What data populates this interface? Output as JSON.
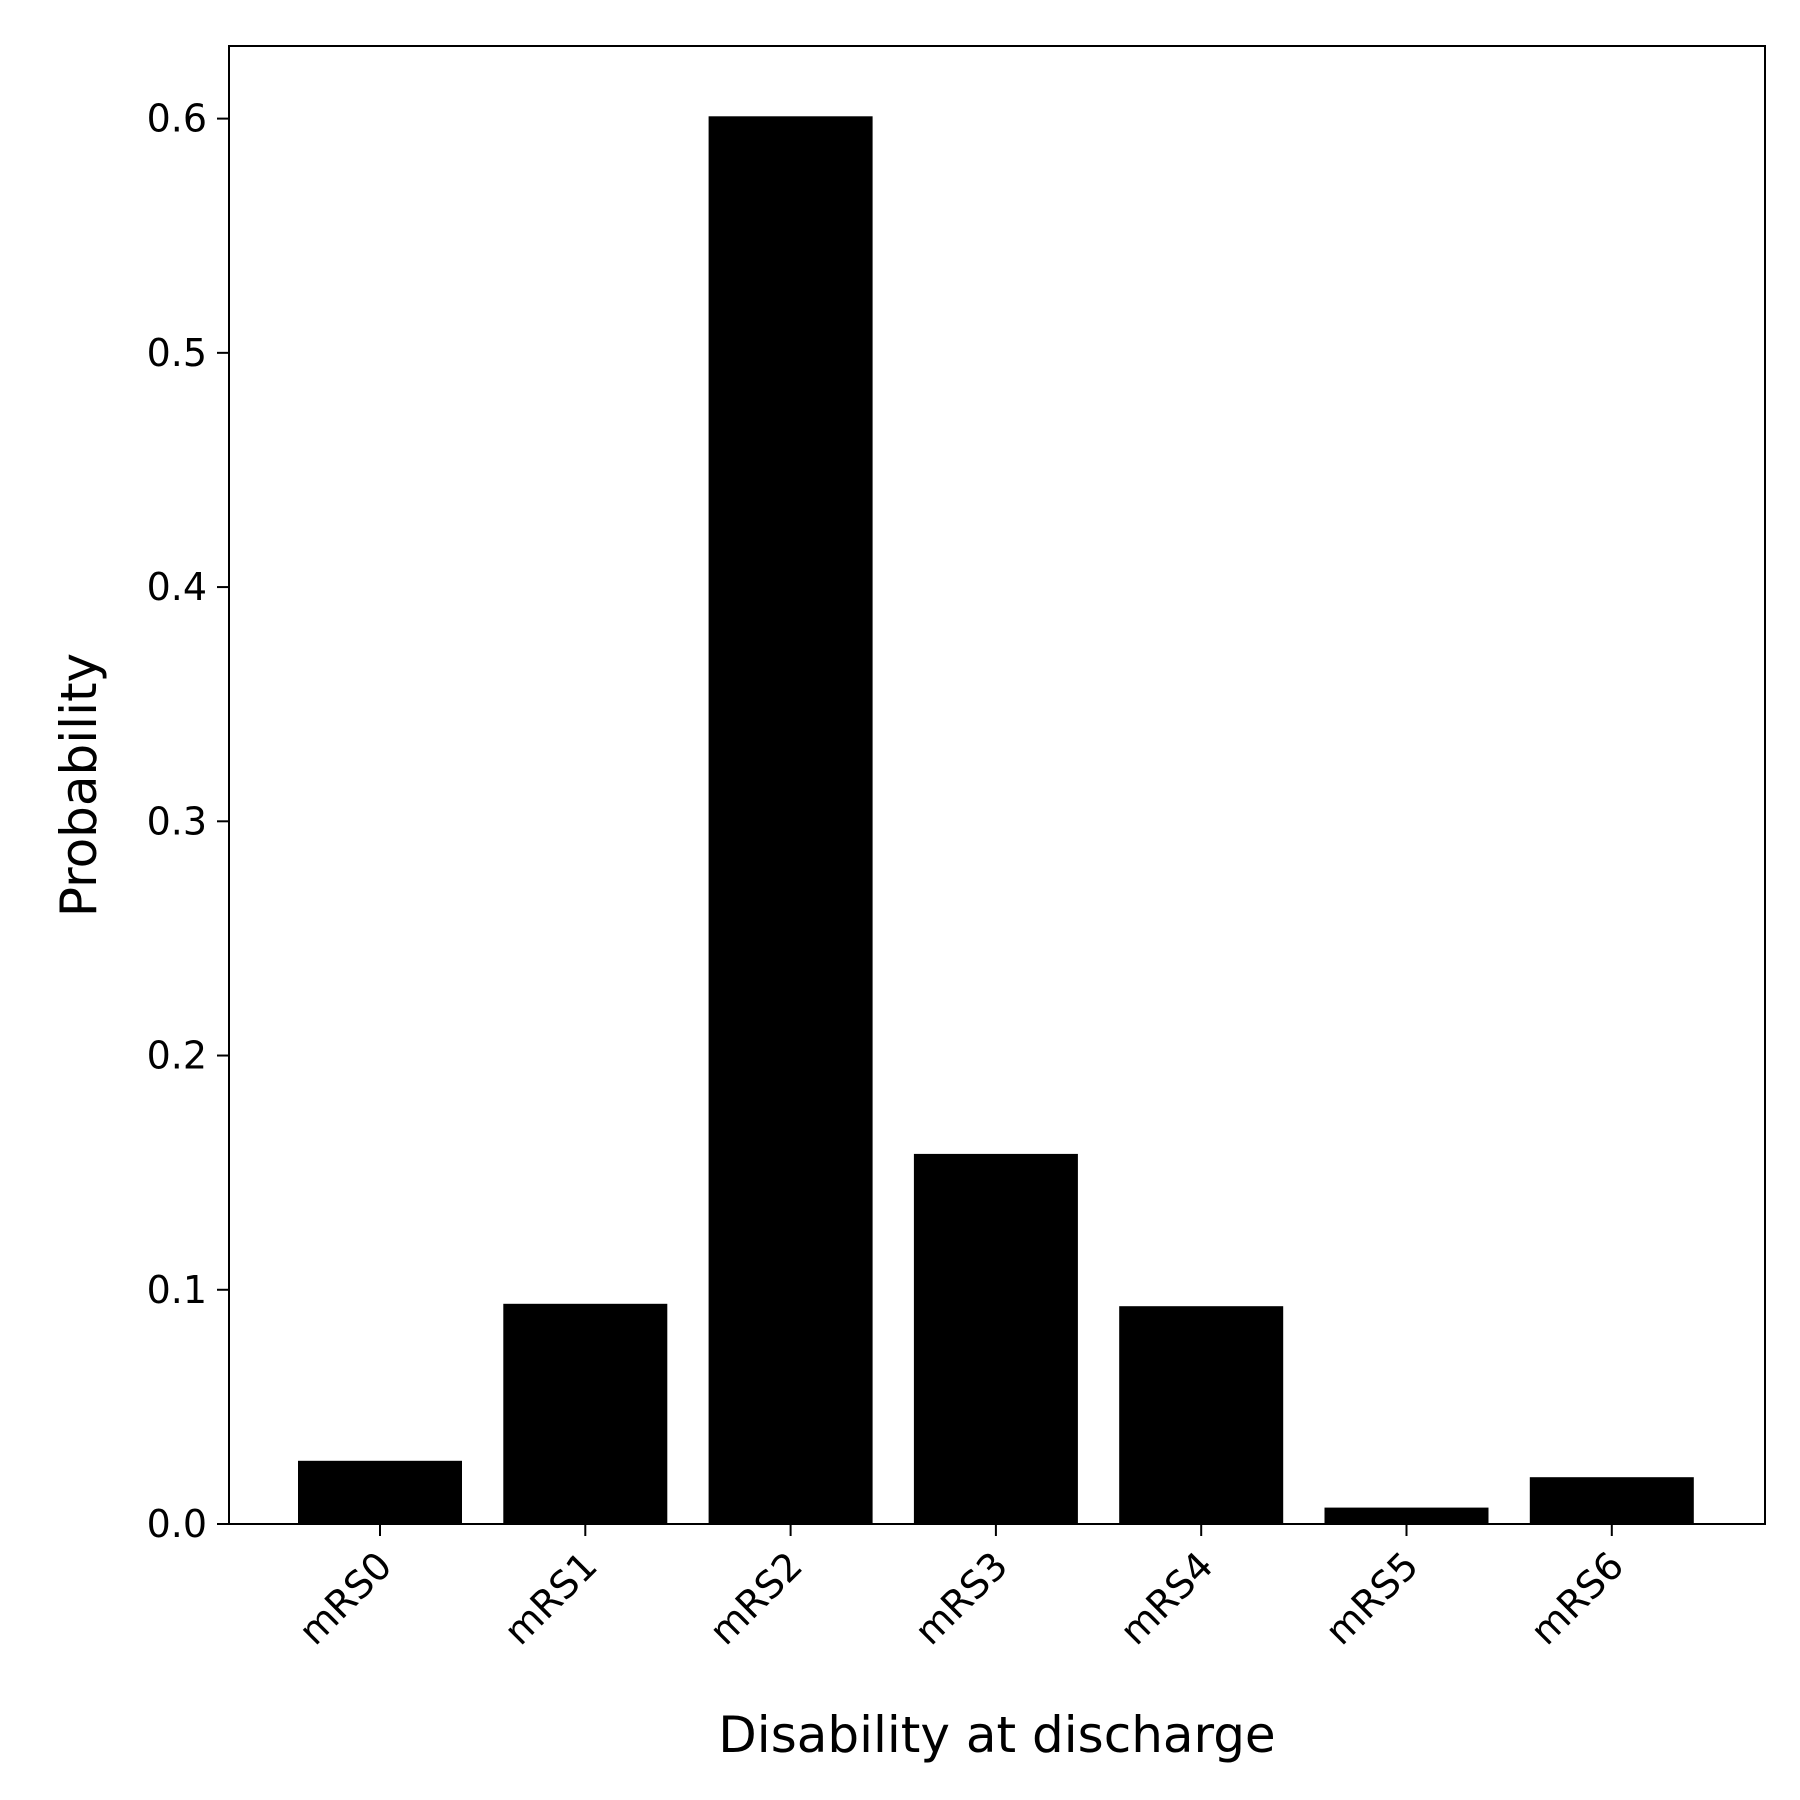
{
  "chart_data": {
    "type": "bar",
    "title": "",
    "xlabel": "Disability at discharge",
    "ylabel": "Probability",
    "categories": [
      "mRS0",
      "mRS1",
      "mRS2",
      "mRS3",
      "mRS4",
      "mRS5",
      "mRS6"
    ],
    "values": [
      0.027,
      0.094,
      0.601,
      0.158,
      0.093,
      0.007,
      0.02
    ],
    "ylim": [
      0,
      0.631
    ],
    "yticks": [
      0.0,
      0.1,
      0.2,
      0.3,
      0.4,
      0.5,
      0.6
    ],
    "ytick_labels": [
      "0.0",
      "0.1",
      "0.2",
      "0.3",
      "0.4",
      "0.5",
      "0.6"
    ],
    "grid": false,
    "legend": "none",
    "bar_color": "#000000"
  }
}
